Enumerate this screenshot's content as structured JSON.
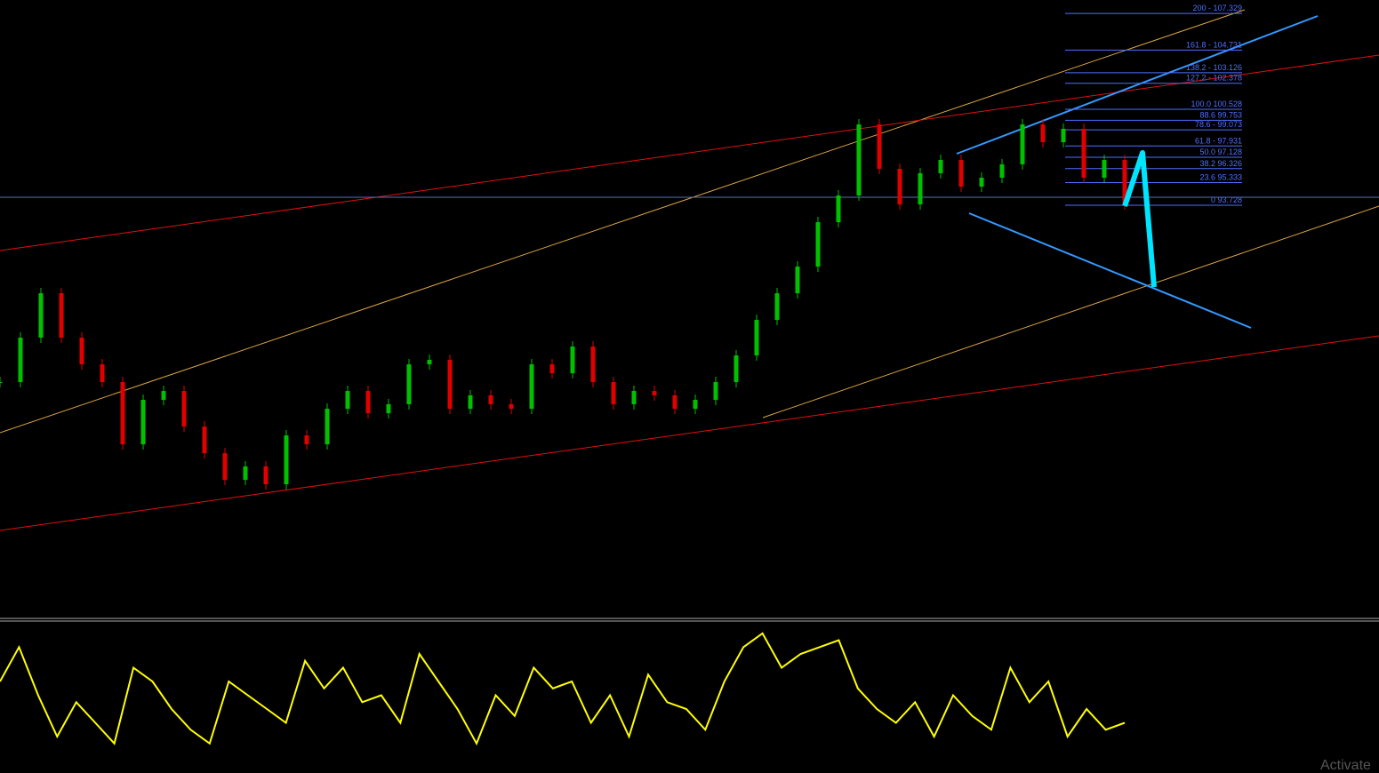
{
  "chart_data": {
    "type": "candlestick",
    "values": [
      81.19,
      84.34,
      87.49,
      84.34,
      82.45,
      81.19,
      76.78,
      79.93,
      80.56,
      78.04,
      76.15,
      74.26,
      75.21,
      73.95,
      77.41,
      76.78,
      79.3,
      80.56,
      78.99,
      79.62,
      82.45,
      82.77,
      79.3,
      80.25,
      79.62,
      79.3,
      82.45,
      81.82,
      83.71,
      81.19,
      79.62,
      80.56,
      80.25,
      79.3,
      79.93,
      81.19,
      83.08,
      85.6,
      87.49,
      89.38,
      92.53,
      94.42,
      99.46,
      96.31,
      93.79,
      96.0,
      96.94,
      95.05,
      95.68,
      96.63,
      99.46,
      98.2,
      99.15,
      95.68,
      96.94,
      93.79
    ],
    "up_color": "#00c000",
    "down_color": "#e00000",
    "ylim": [
      64.5,
      108.28
    ],
    "fib_color": "#4f6fff",
    "fib_levels": [
      {
        "value": 107.329,
        "label": "200 - 107.329"
      },
      {
        "value": 104.731,
        "label": "161.8 - 104.731"
      },
      {
        "value": 103.126,
        "label": "138.2 - 103.126"
      },
      {
        "value": 102.378,
        "label": "127.2 - 102.378"
      },
      {
        "value": 100.528,
        "label": "100.0 100.528"
      },
      {
        "value": 99.753,
        "label": "88.6 99.753"
      },
      {
        "value": 99.073,
        "label": "78.6 - 99.073"
      },
      {
        "value": 97.931,
        "label": "61.8 - 97.931"
      },
      {
        "value": 97.128,
        "label": "50.0 97.128"
      },
      {
        "value": 96.326,
        "label": "38.2 96.326"
      },
      {
        "value": 95.333,
        "label": "23.6 95.333"
      },
      {
        "value": 93.728,
        "label": "0 93.728"
      }
    ]
  },
  "indicator": {
    "type": "line",
    "color": "#ffff00",
    "ylim": [
      0,
      100
    ],
    "values": [
      60,
      85,
      50,
      20,
      45,
      30,
      15,
      70,
      60,
      40,
      25,
      15,
      60,
      50,
      40,
      30,
      75,
      55,
      70,
      45,
      50,
      30,
      80,
      60,
      40,
      15,
      50,
      35,
      70,
      55,
      60,
      30,
      50,
      20,
      65,
      45,
      40,
      25,
      60,
      85,
      95,
      70,
      80,
      85,
      90,
      55,
      40,
      30,
      45,
      20,
      50,
      35,
      25,
      70,
      45,
      60,
      20,
      40,
      25,
      30
    ]
  },
  "watermark": "Activate"
}
